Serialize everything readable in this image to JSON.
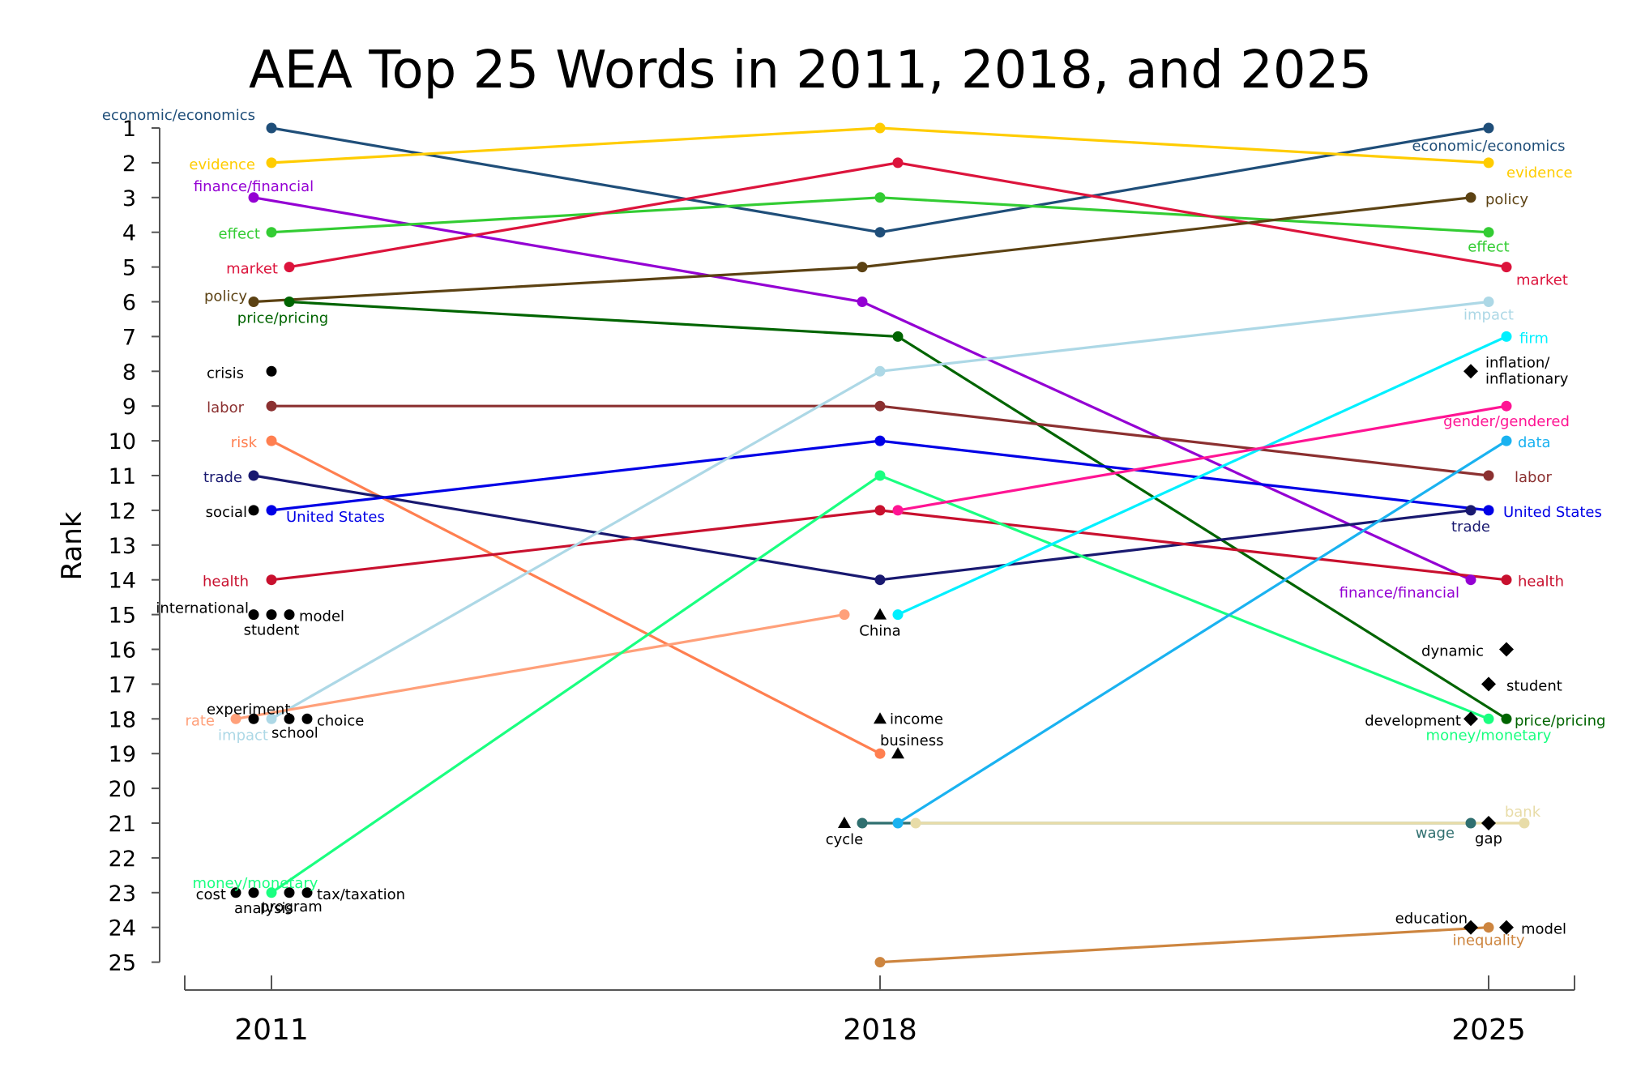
{
  "chart_data": {
    "type": "line",
    "title": "AEA Top 25 Words in 2011, 2018, and 2025",
    "ylabel": "Rank",
    "years": [
      "2011",
      "2018",
      "2025"
    ],
    "ylim": [
      1,
      25
    ],
    "y_reversed": true,
    "y_ticks": [
      "1",
      "2",
      "3",
      "4",
      "5",
      "6",
      "7",
      "8",
      "9",
      "10",
      "11",
      "12",
      "13",
      "14",
      "15",
      "16",
      "17",
      "18",
      "19",
      "20",
      "21",
      "22",
      "23",
      "24",
      "25"
    ],
    "series": [
      {
        "name": "economic/economics",
        "color": "#1f4e79",
        "points": [
          [
            "2011",
            1
          ],
          [
            "2018",
            4
          ],
          [
            "2025",
            1
          ]
        ],
        "labels": [
          {
            "text": "economic/economics",
            "year": "2011"
          },
          {
            "text": "economic/economics",
            "year": "2025"
          }
        ]
      },
      {
        "name": "evidence",
        "color": "#ffcc00",
        "points": [
          [
            "2011",
            2
          ],
          [
            "2018",
            1
          ],
          [
            "2025",
            2
          ]
        ],
        "labels": [
          {
            "text": "evidence",
            "year": "2011"
          },
          {
            "text": "evidence",
            "year": "2025"
          }
        ]
      },
      {
        "name": "finance/financial",
        "color": "#9400d3",
        "points": [
          [
            "2011",
            3
          ],
          [
            "2018",
            6
          ],
          [
            "2025",
            14
          ]
        ],
        "labels": [
          {
            "text": "finance/financial",
            "year": "2011"
          },
          {
            "text": "finance/financial",
            "year": "2025"
          }
        ]
      },
      {
        "name": "effect",
        "color": "#33cc33",
        "points": [
          [
            "2011",
            4
          ],
          [
            "2018",
            3
          ],
          [
            "2025",
            4
          ]
        ],
        "labels": [
          {
            "text": "effect",
            "year": "2011"
          },
          {
            "text": "effect",
            "year": "2025"
          }
        ]
      },
      {
        "name": "market",
        "color": "#dc143c",
        "points": [
          [
            "2011",
            5
          ],
          [
            "2018",
            2
          ],
          [
            "2025",
            5
          ]
        ],
        "labels": [
          {
            "text": "market",
            "year": "2011"
          },
          {
            "text": "market",
            "year": "2025"
          }
        ]
      },
      {
        "name": "policy",
        "color": "#5c4213",
        "points": [
          [
            "2011",
            6
          ],
          [
            "2018",
            5
          ],
          [
            "2025",
            3
          ]
        ],
        "labels": [
          {
            "text": "policy",
            "year": "2011"
          },
          {
            "text": "policy",
            "year": "2025"
          }
        ]
      },
      {
        "name": "price/pricing",
        "color": "#006400",
        "points": [
          [
            "2011",
            6
          ],
          [
            "2018",
            7
          ],
          [
            "2025",
            18
          ]
        ],
        "labels": [
          {
            "text": "price/pricing",
            "year": "2011"
          },
          {
            "text": "price/pricing",
            "year": "2025"
          }
        ]
      },
      {
        "name": "labor",
        "color": "#8b3030",
        "points": [
          [
            "2011",
            9
          ],
          [
            "2018",
            9
          ],
          [
            "2025",
            11
          ]
        ],
        "labels": [
          {
            "text": "labor",
            "year": "2011"
          },
          {
            "text": "labor",
            "year": "2025"
          }
        ]
      },
      {
        "name": "risk",
        "color": "#ff7f50",
        "points": [
          [
            "2011",
            10
          ],
          [
            "2018",
            19
          ]
        ],
        "labels": [
          {
            "text": "risk",
            "year": "2011"
          }
        ]
      },
      {
        "name": "trade",
        "color": "#191970",
        "points": [
          [
            "2011",
            11
          ],
          [
            "2018",
            14
          ],
          [
            "2025",
            12
          ]
        ],
        "labels": [
          {
            "text": "trade",
            "year": "2011"
          },
          {
            "text": "trade",
            "year": "2025"
          }
        ]
      },
      {
        "name": "United States",
        "color": "#0000e6",
        "points": [
          [
            "2011",
            12
          ],
          [
            "2018",
            10
          ],
          [
            "2025",
            12
          ]
        ],
        "labels": [
          {
            "text": "United States",
            "year": "2011"
          },
          {
            "text": "United States",
            "year": "2025"
          }
        ]
      },
      {
        "name": "health",
        "color": "#c8102e",
        "points": [
          [
            "2011",
            14
          ],
          [
            "2018",
            12
          ],
          [
            "2025",
            14
          ]
        ],
        "labels": [
          {
            "text": "health",
            "year": "2011"
          },
          {
            "text": "health",
            "year": "2025"
          }
        ]
      },
      {
        "name": "impact",
        "color": "#add8e6",
        "points": [
          [
            "2011",
            18
          ],
          [
            "2018",
            8
          ],
          [
            "2025",
            6
          ]
        ],
        "labels": [
          {
            "text": "impact",
            "year": "2011"
          },
          {
            "text": "impact",
            "year": "2025"
          }
        ]
      },
      {
        "name": "rate",
        "color": "#ffa07a",
        "points": [
          [
            "2011",
            18
          ],
          [
            "2018",
            15
          ]
        ],
        "labels": [
          {
            "text": "rate",
            "year": "2011"
          }
        ]
      },
      {
        "name": "money/monetary",
        "color": "#1aff80",
        "points": [
          [
            "2011",
            23
          ],
          [
            "2018",
            11
          ],
          [
            "2025",
            18
          ]
        ],
        "labels": [
          {
            "text": "money/monetary",
            "year": "2011"
          },
          {
            "text": "money/monetary",
            "year": "2025"
          }
        ]
      },
      {
        "name": "firm",
        "color": "#00f0ff",
        "points": [
          [
            "2018",
            15
          ],
          [
            "2025",
            7
          ]
        ],
        "labels": [
          {
            "text": "firm",
            "year": "2025"
          }
        ]
      },
      {
        "name": "gender/gendered",
        "color": "#ff1493",
        "points": [
          [
            "2018",
            12
          ],
          [
            "2025",
            9
          ]
        ],
        "labels": [
          {
            "text": "gender/gendered",
            "year": "2025"
          }
        ]
      },
      {
        "name": "data",
        "color": "#1ab2f0",
        "points": [
          [
            "2018",
            21
          ],
          [
            "2025",
            10
          ]
        ],
        "labels": [
          {
            "text": "data",
            "year": "2025"
          }
        ]
      },
      {
        "name": "wage",
        "color": "#2f6f6f",
        "points": [
          [
            "2018",
            21
          ],
          [
            "2025",
            21
          ]
        ],
        "labels": [
          {
            "text": "wage",
            "year": "2025"
          }
        ]
      },
      {
        "name": "bank",
        "color": "#e8dca8",
        "points": [
          [
            "2018",
            21
          ],
          [
            "2025",
            21
          ]
        ],
        "labels": [
          {
            "text": "bank",
            "year": "2025"
          }
        ]
      },
      {
        "name": "inequality",
        "color": "#cd853f",
        "points": [
          [
            "2018",
            25
          ],
          [
            "2025",
            24
          ]
        ],
        "labels": [
          {
            "text": "inequality",
            "year": "2025"
          }
        ]
      }
    ],
    "single_year_words": [
      {
        "text": "crisis",
        "year": "2011",
        "rank": 8,
        "marker": "circle"
      },
      {
        "text": "social",
        "year": "2011",
        "rank": 12,
        "marker": "circle"
      },
      {
        "text": "international",
        "year": "2011",
        "rank": 15,
        "marker": "circle"
      },
      {
        "text": "student",
        "year": "2011",
        "rank": 15,
        "marker": "circle"
      },
      {
        "text": "model",
        "year": "2011",
        "rank": 15,
        "marker": "circle"
      },
      {
        "text": "experiment",
        "year": "2011",
        "rank": 18,
        "marker": "circle"
      },
      {
        "text": "school",
        "year": "2011",
        "rank": 18,
        "marker": "circle"
      },
      {
        "text": "choice",
        "year": "2011",
        "rank": 18,
        "marker": "circle"
      },
      {
        "text": "cost",
        "year": "2011",
        "rank": 23,
        "marker": "circle"
      },
      {
        "text": "analysis",
        "year": "2011",
        "rank": 23,
        "marker": "circle"
      },
      {
        "text": "program",
        "year": "2011",
        "rank": 23,
        "marker": "circle"
      },
      {
        "text": "tax/taxation",
        "year": "2011",
        "rank": 23,
        "marker": "circle"
      },
      {
        "text": "China",
        "year": "2018",
        "rank": 15,
        "marker": "triangle"
      },
      {
        "text": "income",
        "year": "2018",
        "rank": 18,
        "marker": "triangle"
      },
      {
        "text": "business",
        "year": "2018",
        "rank": 19,
        "marker": "triangle"
      },
      {
        "text": "cycle",
        "year": "2018",
        "rank": 21,
        "marker": "triangle"
      },
      {
        "text": "inflation/",
        "text2": "inflationary",
        "year": "2025",
        "rank": 8,
        "marker": "diamond"
      },
      {
        "text": "dynamic",
        "year": "2025",
        "rank": 16,
        "marker": "diamond"
      },
      {
        "text": "student",
        "year": "2025",
        "rank": 17,
        "marker": "diamond"
      },
      {
        "text": "development",
        "year": "2025",
        "rank": 18,
        "marker": "diamond"
      },
      {
        "text": "gap",
        "year": "2025",
        "rank": 21,
        "marker": "diamond"
      },
      {
        "text": "education",
        "year": "2025",
        "rank": 24,
        "marker": "diamond"
      },
      {
        "text": "model",
        "year": "2025",
        "rank": 24,
        "marker": "diamond"
      }
    ]
  }
}
